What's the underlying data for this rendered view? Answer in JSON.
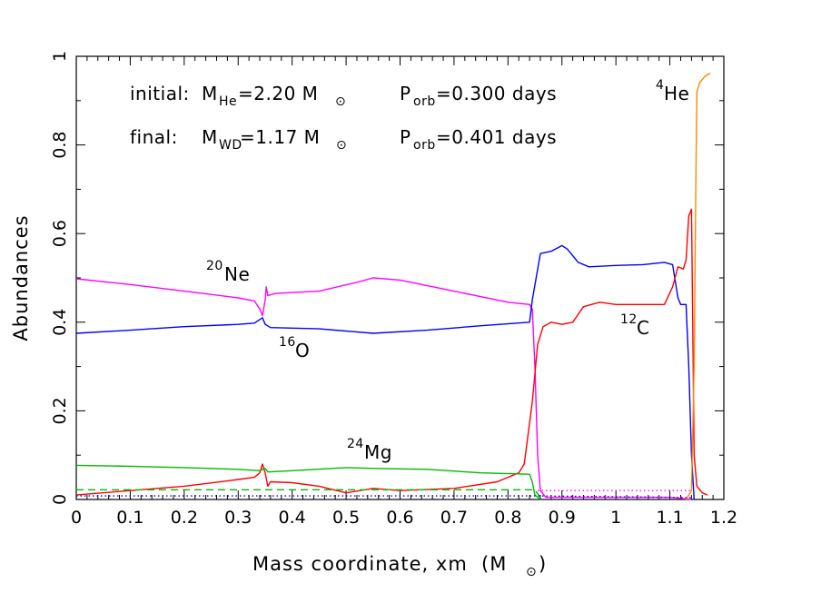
{
  "chart_data": {
    "type": "line",
    "xlabel": "Mass coordinate, xm",
    "xlabel_unit": "(M",
    "xlabel_unit_close": ")",
    "ylabel": "Abundances",
    "xlim": [
      0,
      1.2
    ],
    "ylim": [
      0,
      1
    ],
    "xticks": [
      "0",
      "0.1",
      "0.2",
      "0.3",
      "0.4",
      "0.5",
      "0.6",
      "0.7",
      "0.8",
      "0.9",
      "1",
      "1.1",
      "1.2"
    ],
    "yticks": [
      "0",
      "0.2",
      "0.4",
      "0.6",
      "0.8",
      "1"
    ],
    "grid": false,
    "annotations": {
      "initial_label": "initial:",
      "initial_mass": "M",
      "initial_mass_sub": "He",
      "initial_mass_value": "=2.20 M",
      "initial_porb": "P",
      "initial_porb_sub": "orb",
      "initial_porb_value": "=0.300 days",
      "final_label": "final:",
      "final_mass": "M",
      "final_mass_sub": "WD",
      "final_mass_value": "=1.17 M",
      "final_porb": "P",
      "final_porb_sub": "orb",
      "final_porb_value": "=0.401 days",
      "he4_sup": "4",
      "he4": "He",
      "ne20_sup": "20",
      "ne20": "Ne",
      "o16_sup": "16",
      "o16": "O",
      "c12_sup": "12",
      "c12": "C",
      "mg24_sup": "24",
      "mg24": "Mg"
    },
    "series": [
      {
        "name": "20Ne",
        "color": "#ff00ff",
        "style": "solid",
        "points": [
          [
            0,
            0.498
          ],
          [
            0.1,
            0.485
          ],
          [
            0.2,
            0.47
          ],
          [
            0.3,
            0.455
          ],
          [
            0.33,
            0.448
          ],
          [
            0.34,
            0.43
          ],
          [
            0.345,
            0.415
          ],
          [
            0.35,
            0.45
          ],
          [
            0.352,
            0.48
          ],
          [
            0.355,
            0.46
          ],
          [
            0.37,
            0.465
          ],
          [
            0.45,
            0.47
          ],
          [
            0.52,
            0.49
          ],
          [
            0.55,
            0.5
          ],
          [
            0.6,
            0.495
          ],
          [
            0.7,
            0.47
          ],
          [
            0.8,
            0.445
          ],
          [
            0.84,
            0.44
          ],
          [
            0.845,
            0.43
          ],
          [
            0.85,
            0.3
          ],
          [
            0.855,
            0.1
          ],
          [
            0.86,
            0.02
          ],
          [
            0.87,
            0.005
          ],
          [
            1.1,
            0.005
          ],
          [
            1.14,
            0.0
          ]
        ]
      },
      {
        "name": "16O",
        "color": "#0000ff",
        "style": "solid",
        "points": [
          [
            0,
            0.375
          ],
          [
            0.1,
            0.382
          ],
          [
            0.2,
            0.39
          ],
          [
            0.3,
            0.395
          ],
          [
            0.33,
            0.398
          ],
          [
            0.345,
            0.41
          ],
          [
            0.35,
            0.395
          ],
          [
            0.36,
            0.388
          ],
          [
            0.45,
            0.385
          ],
          [
            0.55,
            0.375
          ],
          [
            0.65,
            0.382
          ],
          [
            0.75,
            0.392
          ],
          [
            0.84,
            0.4
          ],
          [
            0.845,
            0.45
          ],
          [
            0.86,
            0.555
          ],
          [
            0.88,
            0.56
          ],
          [
            0.9,
            0.573
          ],
          [
            0.91,
            0.565
          ],
          [
            0.93,
            0.535
          ],
          [
            0.95,
            0.525
          ],
          [
            1.0,
            0.528
          ],
          [
            1.05,
            0.53
          ],
          [
            1.09,
            0.535
          ],
          [
            1.105,
            0.53
          ],
          [
            1.115,
            0.455
          ],
          [
            1.12,
            0.44
          ],
          [
            1.13,
            0.44
          ],
          [
            1.135,
            0.3
          ],
          [
            1.14,
            0.1
          ],
          [
            1.145,
            0.0
          ]
        ]
      },
      {
        "name": "12C",
        "color": "#ff0000",
        "style": "solid",
        "points": [
          [
            0,
            0.01
          ],
          [
            0.1,
            0.02
          ],
          [
            0.2,
            0.03
          ],
          [
            0.3,
            0.045
          ],
          [
            0.33,
            0.05
          ],
          [
            0.34,
            0.06
          ],
          [
            0.345,
            0.08
          ],
          [
            0.35,
            0.06
          ],
          [
            0.355,
            0.03
          ],
          [
            0.36,
            0.04
          ],
          [
            0.4,
            0.038
          ],
          [
            0.45,
            0.03
          ],
          [
            0.5,
            0.015
          ],
          [
            0.55,
            0.025
          ],
          [
            0.6,
            0.02
          ],
          [
            0.7,
            0.025
          ],
          [
            0.78,
            0.04
          ],
          [
            0.82,
            0.06
          ],
          [
            0.83,
            0.08
          ],
          [
            0.845,
            0.22
          ],
          [
            0.855,
            0.35
          ],
          [
            0.865,
            0.39
          ],
          [
            0.88,
            0.4
          ],
          [
            0.9,
            0.395
          ],
          [
            0.92,
            0.4
          ],
          [
            0.94,
            0.435
          ],
          [
            0.97,
            0.445
          ],
          [
            1.0,
            0.44
          ],
          [
            1.05,
            0.44
          ],
          [
            1.09,
            0.44
          ],
          [
            1.105,
            0.48
          ],
          [
            1.115,
            0.525
          ],
          [
            1.125,
            0.52
          ],
          [
            1.13,
            0.54
          ],
          [
            1.135,
            0.64
          ],
          [
            1.14,
            0.655
          ],
          [
            1.145,
            0.1
          ],
          [
            1.15,
            0.03
          ],
          [
            1.16,
            0.015
          ],
          [
            1.17,
            0.01
          ]
        ]
      },
      {
        "name": "24Mg",
        "color": "#00bb00",
        "style": "solid",
        "points": [
          [
            0,
            0.077
          ],
          [
            0.1,
            0.075
          ],
          [
            0.2,
            0.072
          ],
          [
            0.3,
            0.068
          ],
          [
            0.34,
            0.065
          ],
          [
            0.35,
            0.07
          ],
          [
            0.355,
            0.062
          ],
          [
            0.4,
            0.065
          ],
          [
            0.5,
            0.072
          ],
          [
            0.55,
            0.07
          ],
          [
            0.65,
            0.068
          ],
          [
            0.75,
            0.06
          ],
          [
            0.84,
            0.057
          ],
          [
            0.845,
            0.04
          ],
          [
            0.85,
            0.01
          ],
          [
            0.86,
            0.0
          ]
        ]
      },
      {
        "name": "24Mg-dashed",
        "color": "#00bb00",
        "style": "dashed",
        "points": [
          [
            0,
            0.022
          ],
          [
            0.3,
            0.022
          ],
          [
            0.6,
            0.022
          ],
          [
            0.85,
            0.022
          ],
          [
            0.86,
            0.005
          ]
        ]
      },
      {
        "name": "Ne-dotted",
        "color": "#ff00ff",
        "style": "dotted",
        "points": [
          [
            0.855,
            0.02
          ],
          [
            0.9,
            0.02
          ],
          [
            1.0,
            0.02
          ],
          [
            1.1,
            0.02
          ],
          [
            1.14,
            0.02
          ]
        ]
      },
      {
        "name": "4He",
        "color": "#ff8800",
        "style": "solid",
        "points": [
          [
            1.13,
            0.0
          ],
          [
            1.14,
            0.02
          ],
          [
            1.145,
            0.3
          ],
          [
            1.148,
            0.7
          ],
          [
            1.15,
            0.92
          ],
          [
            1.155,
            0.94
          ],
          [
            1.165,
            0.955
          ],
          [
            1.175,
            0.962
          ]
        ]
      },
      {
        "name": "blue-dotted",
        "color": "#0000ff",
        "style": "dotted",
        "points": [
          [
            0,
            0.008
          ],
          [
            0.5,
            0.008
          ],
          [
            0.86,
            0.008
          ],
          [
            1.14,
            0.004
          ]
        ]
      }
    ]
  }
}
